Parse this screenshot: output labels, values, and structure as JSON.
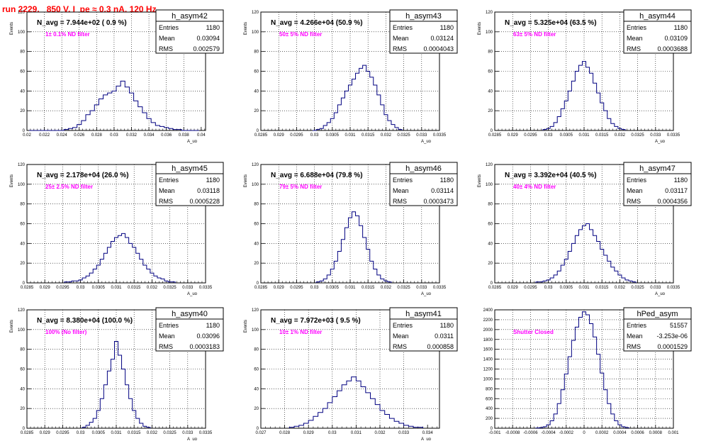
{
  "page_title": "run 2229,   850 V, I_pe ≈ 0.3 nA, 120 Hz",
  "colors": {
    "histogram_line": "#000080",
    "filter_label": "#ff00ff",
    "title": "#ff0000",
    "grid": "#000000"
  },
  "chart_data": [
    {
      "type": "bar",
      "title": "h_asym42",
      "navg": "N_avg = 7.944e+02 ( 0.9 %)",
      "filter_label": "1± 0.1% ND filter",
      "stats": {
        "entries": "1180",
        "mean": "0.03094",
        "rms": "0.002579"
      },
      "xlabel": "A_uo",
      "ylabel": "Events",
      "xlim": [
        0.02,
        0.0405
      ],
      "ylim": [
        0,
        120
      ],
      "x_ticks": [
        "0.02",
        "0.022",
        "0.024",
        "0.026",
        "0.028",
        "0.03",
        "0.032",
        "0.034",
        "0.036",
        "0.038",
        "0.04"
      ],
      "y_ticks": [
        "0",
        "20",
        "40",
        "60",
        "80",
        "100",
        "120"
      ],
      "x": [
        0.0205,
        0.021,
        0.0215,
        0.022,
        0.0225,
        0.023,
        0.0235,
        0.024,
        0.0245,
        0.025,
        0.0255,
        0.026,
        0.0265,
        0.027,
        0.0275,
        0.028,
        0.0285,
        0.029,
        0.0295,
        0.03,
        0.0305,
        0.031,
        0.0315,
        0.032,
        0.0325,
        0.033,
        0.0335,
        0.034,
        0.0345,
        0.035,
        0.0355,
        0.036,
        0.0365,
        0.037,
        0.0375,
        0.038,
        0.0385,
        0.039,
        0.0395
      ],
      "values": [
        0,
        0,
        0,
        0,
        0,
        0,
        0,
        0,
        1,
        2,
        3,
        6,
        10,
        16,
        20,
        26,
        32,
        36,
        38,
        40,
        45,
        50,
        44,
        38,
        30,
        24,
        18,
        12,
        8,
        5,
        4,
        3,
        2,
        1,
        1,
        0,
        0,
        0,
        0
      ]
    },
    {
      "type": "bar",
      "title": "h_asym43",
      "navg": "N_avg = 4.266e+04 (50.9 %)",
      "filter_label": "50± 5% ND filter",
      "stats": {
        "entries": "1180",
        "mean": "0.03124",
        "rms": "0.0004043"
      },
      "xlabel": "A_uo",
      "ylabel": "Events",
      "xlim": [
        0.0285,
        0.0335
      ],
      "ylim": [
        0,
        120
      ],
      "x_ticks": [
        "0.0285",
        "0.029",
        "0.0295",
        "0.03",
        "0.0305",
        "0.031",
        "0.0315",
        "0.032",
        "0.0325",
        "0.033",
        "0.0335"
      ],
      "y_ticks": [
        "0",
        "20",
        "40",
        "60",
        "80",
        "100",
        "120"
      ],
      "x": [
        0.03,
        0.0301,
        0.0302,
        0.0303,
        0.0304,
        0.0305,
        0.0306,
        0.0307,
        0.0308,
        0.0309,
        0.031,
        0.0311,
        0.0312,
        0.0313,
        0.0314,
        0.0315,
        0.0316,
        0.0317,
        0.0318,
        0.0319,
        0.032,
        0.0321,
        0.0322,
        0.0323,
        0.0324
      ],
      "values": [
        0,
        1,
        2,
        5,
        8,
        12,
        18,
        26,
        33,
        40,
        46,
        52,
        58,
        63,
        66,
        60,
        54,
        46,
        36,
        26,
        16,
        10,
        6,
        3,
        1
      ]
    },
    {
      "type": "bar",
      "title": "h_asym44",
      "navg": "N_avg = 5.325e+04 (63.5 %)",
      "filter_label": "63± 5% ND filter",
      "stats": {
        "entries": "1180",
        "mean": "0.03109",
        "rms": "0.0003688"
      },
      "xlabel": "A_uo",
      "ylabel": "Events",
      "xlim": [
        0.0285,
        0.0335
      ],
      "ylim": [
        0,
        120
      ],
      "x_ticks": [
        "0.0285",
        "0.029",
        "0.0295",
        "0.03",
        "0.0305",
        "0.031",
        "0.0315",
        "0.032",
        "0.0325",
        "0.033",
        "0.0335"
      ],
      "y_ticks": [
        "0",
        "20",
        "40",
        "60",
        "80",
        "100",
        "120"
      ],
      "x": [
        0.0299,
        0.03,
        0.0301,
        0.0302,
        0.0303,
        0.0304,
        0.0305,
        0.0306,
        0.0307,
        0.0308,
        0.0309,
        0.031,
        0.0311,
        0.0312,
        0.0313,
        0.0314,
        0.0315,
        0.0316,
        0.0317,
        0.0318,
        0.0319,
        0.032,
        0.0321
      ],
      "values": [
        1,
        2,
        4,
        8,
        14,
        22,
        30,
        40,
        50,
        60,
        66,
        70,
        64,
        58,
        48,
        38,
        28,
        20,
        12,
        7,
        4,
        2,
        1
      ]
    },
    {
      "type": "bar",
      "title": "h_asym45",
      "navg": "N_avg = 2.178e+04 (26.0 %)",
      "filter_label": "25± 2.5% ND filter",
      "stats": {
        "entries": "1180",
        "mean": "0.03118",
        "rms": "0.0005228"
      },
      "xlabel": "A_uo",
      "ylabel": "Events",
      "xlim": [
        0.0285,
        0.0335
      ],
      "ylim": [
        0,
        120
      ],
      "x_ticks": [
        "0.0285",
        "0.029",
        "0.0295",
        "0.03",
        "0.0305",
        "0.031",
        "0.0315",
        "0.032",
        "0.0325",
        "0.033",
        "0.0335"
      ],
      "y_ticks": [
        "0",
        "20",
        "40",
        "60",
        "80",
        "100",
        "120"
      ],
      "x": [
        0.0296,
        0.0297,
        0.0298,
        0.0299,
        0.03,
        0.0301,
        0.0302,
        0.0303,
        0.0304,
        0.0305,
        0.0306,
        0.0307,
        0.0308,
        0.0309,
        0.031,
        0.0311,
        0.0312,
        0.0313,
        0.0314,
        0.0315,
        0.0316,
        0.0317,
        0.0318,
        0.0319,
        0.032,
        0.0321,
        0.0322,
        0.0323,
        0.0324,
        0.0325,
        0.0326
      ],
      "values": [
        1,
        1,
        2,
        2,
        3,
        5,
        7,
        10,
        14,
        18,
        24,
        30,
        36,
        42,
        46,
        48,
        50,
        46,
        40,
        36,
        30,
        24,
        18,
        14,
        10,
        7,
        5,
        4,
        2,
        1,
        1
      ]
    },
    {
      "type": "bar",
      "title": "h_asym46",
      "navg": "N_avg = 6.688e+04 (79.8 %)",
      "filter_label": "79± 5% ND filter",
      "stats": {
        "entries": "1180",
        "mean": "0.03114",
        "rms": "0.0003473"
      },
      "xlabel": "A_uo",
      "ylabel": "Events",
      "xlim": [
        0.0285,
        0.0335
      ],
      "ylim": [
        0,
        120
      ],
      "x_ticks": [
        "0.0285",
        "0.029",
        "0.0295",
        "0.03",
        "0.0305",
        "0.031",
        "0.0315",
        "0.032",
        "0.0325",
        "0.033",
        "0.0335"
      ],
      "y_ticks": [
        "0",
        "20",
        "40",
        "60",
        "80",
        "100",
        "120"
      ],
      "x": [
        0.0301,
        0.0302,
        0.0303,
        0.0304,
        0.0305,
        0.0306,
        0.0307,
        0.0308,
        0.0309,
        0.031,
        0.0311,
        0.0312,
        0.0313,
        0.0314,
        0.0315,
        0.0316,
        0.0317,
        0.0318,
        0.0319,
        0.032,
        0.0321
      ],
      "values": [
        1,
        2,
        4,
        8,
        14,
        22,
        32,
        44,
        56,
        66,
        72,
        68,
        58,
        46,
        34,
        22,
        14,
        8,
        4,
        2,
        1
      ]
    },
    {
      "type": "bar",
      "title": "h_asym47",
      "navg": "N_avg = 3.392e+04 (40.5 %)",
      "filter_label": "40± 4% ND filter",
      "stats": {
        "entries": "1180",
        "mean": "0.03117",
        "rms": "0.0004356"
      },
      "xlabel": "A_uo",
      "ylabel": "Events",
      "xlim": [
        0.0285,
        0.0335
      ],
      "ylim": [
        0,
        120
      ],
      "x_ticks": [
        "0.0285",
        "0.029",
        "0.0295",
        "0.03",
        "0.0305",
        "0.031",
        "0.0315",
        "0.032",
        "0.0325",
        "0.033",
        "0.0335"
      ],
      "y_ticks": [
        "0",
        "20",
        "40",
        "60",
        "80",
        "100",
        "120"
      ],
      "x": [
        0.0297,
        0.0298,
        0.0299,
        0.03,
        0.0301,
        0.0302,
        0.0303,
        0.0304,
        0.0305,
        0.0306,
        0.0307,
        0.0308,
        0.0309,
        0.031,
        0.0311,
        0.0312,
        0.0313,
        0.0314,
        0.0315,
        0.0316,
        0.0317,
        0.0318,
        0.0319,
        0.032,
        0.0321,
        0.0322,
        0.0323,
        0.0324
      ],
      "values": [
        1,
        1,
        2,
        3,
        5,
        8,
        12,
        18,
        24,
        32,
        40,
        48,
        54,
        58,
        60,
        54,
        48,
        42,
        34,
        28,
        22,
        16,
        12,
        8,
        5,
        3,
        2,
        1
      ]
    },
    {
      "type": "bar",
      "title": "h_asym40",
      "navg": "N_avg = 8.380e+04 (100.0 %)",
      "filter_label": "100% (No filter)",
      "stats": {
        "entries": "1180",
        "mean": "0.03096",
        "rms": "0.0003183"
      },
      "xlabel": "A_uo",
      "ylabel": "Events",
      "xlim": [
        0.0285,
        0.0335
      ],
      "ylim": [
        0,
        120
      ],
      "x_ticks": [
        "0.0285",
        "0.029",
        "0.0295",
        "0.03",
        "0.0305",
        "0.031",
        "0.0315",
        "0.032",
        "0.0325",
        "0.033",
        "0.0335"
      ],
      "y_ticks": [
        "0",
        "20",
        "40",
        "60",
        "80",
        "100",
        "120"
      ],
      "x": [
        0.0301,
        0.0302,
        0.0303,
        0.0304,
        0.0305,
        0.0306,
        0.0307,
        0.0308,
        0.0309,
        0.031,
        0.0311,
        0.0312,
        0.0313,
        0.0314,
        0.0315,
        0.0316,
        0.0317,
        0.0318,
        0.0319
      ],
      "values": [
        1,
        3,
        6,
        10,
        18,
        30,
        44,
        58,
        70,
        88,
        74,
        60,
        44,
        30,
        18,
        10,
        5,
        2,
        1
      ]
    },
    {
      "type": "bar",
      "title": "h_asym41",
      "navg": "N_avg = 7.972e+03 ( 9.5 %)",
      "filter_label": "10± 1% ND filter",
      "stats": {
        "entries": "1180",
        "mean": "0.0311",
        "rms": "0.000858"
      },
      "xlabel": "A_uo",
      "ylabel": "Events",
      "xlim": [
        0.027,
        0.0345
      ],
      "ylim": [
        0,
        120
      ],
      "x_ticks": [
        "0.027",
        "0.028",
        "0.029",
        "0.03",
        "0.031",
        "0.032",
        "0.033",
        "0.034"
      ],
      "y_ticks": [
        "0",
        "20",
        "40",
        "60",
        "80",
        "100",
        "120"
      ],
      "x": [
        0.0283,
        0.0285,
        0.0287,
        0.0289,
        0.0291,
        0.0293,
        0.0295,
        0.0297,
        0.0299,
        0.0301,
        0.0303,
        0.0305,
        0.0307,
        0.0309,
        0.0311,
        0.0313,
        0.0315,
        0.0317,
        0.0319,
        0.0321,
        0.0323,
        0.0325,
        0.0327,
        0.0329,
        0.0331,
        0.0333,
        0.0335,
        0.0337
      ],
      "values": [
        1,
        2,
        3,
        5,
        8,
        12,
        16,
        20,
        26,
        32,
        38,
        44,
        48,
        52,
        48,
        42,
        36,
        30,
        24,
        18,
        14,
        10,
        7,
        5,
        3,
        2,
        1,
        1
      ]
    },
    {
      "type": "bar",
      "title": "hPed_asym",
      "navg": "",
      "filter_label": "Shutter Closed",
      "stats": {
        "entries": "51557",
        "mean": "-3.253e-06",
        "rms": "0.0001529"
      },
      "xlabel": "",
      "ylabel": "",
      "xlim": [
        -0.001,
        0.001
      ],
      "ylim": [
        0,
        2400
      ],
      "x_ticks": [
        "-0.001",
        "-0.0008",
        "-0.0006",
        "-0.0004",
        "-0.0002",
        "0",
        "0.0002",
        "0.0004",
        "0.0006",
        "0.0008",
        "0.001"
      ],
      "y_ticks": [
        "0",
        "200",
        "400",
        "600",
        "800",
        "1000",
        "1200",
        "1400",
        "1600",
        "1800",
        "2000",
        "2200",
        "2400"
      ],
      "x": [
        -0.00052,
        -0.00048,
        -0.00044,
        -0.0004,
        -0.00036,
        -0.00032,
        -0.00028,
        -0.00024,
        -0.0002,
        -0.00016,
        -0.00012,
        -8e-05,
        -4e-05,
        0,
        4e-05,
        8e-05,
        0.00012,
        0.00016,
        0.0002,
        0.00024,
        0.00028,
        0.00032,
        0.00036,
        0.0004,
        0.00044,
        0.00048
      ],
      "values": [
        5,
        12,
        30,
        70,
        150,
        290,
        500,
        780,
        1100,
        1450,
        1780,
        2050,
        2250,
        2360,
        2300,
        2120,
        1850,
        1500,
        1120,
        780,
        500,
        290,
        150,
        70,
        30,
        12
      ]
    }
  ]
}
